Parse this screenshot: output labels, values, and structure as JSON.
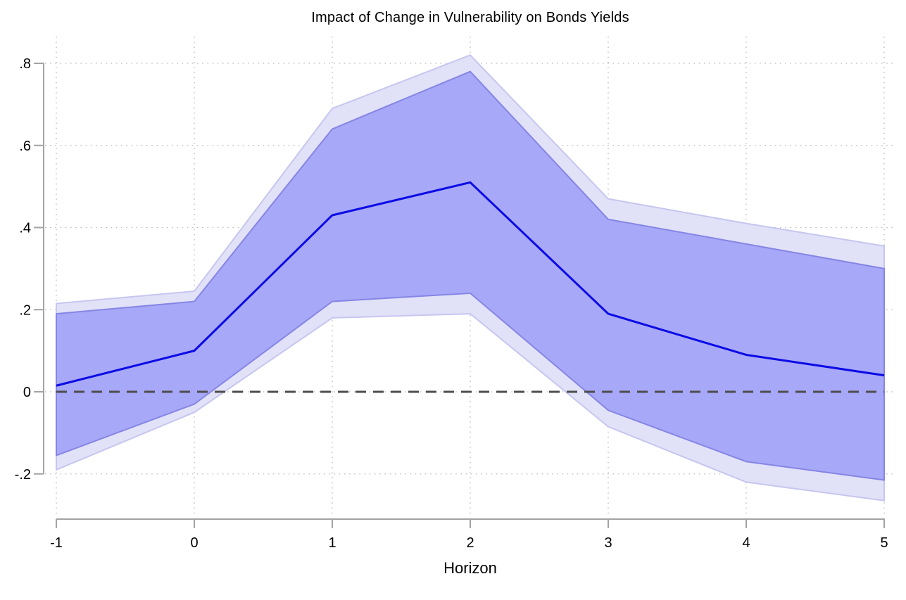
{
  "chart_data": {
    "type": "area",
    "title": "Impact of Change in Vulnerability on Bonds Yields",
    "xlabel": "Horizon",
    "ylabel": "",
    "x": [
      -1,
      0,
      1,
      2,
      3,
      4,
      5
    ],
    "series": [
      {
        "name": "point-estimate",
        "kind": "line",
        "values": [
          0.015,
          0.1,
          0.43,
          0.51,
          0.19,
          0.09,
          0.04
        ]
      },
      {
        "name": "inner-confidence-band-upper",
        "kind": "band-edge",
        "values": [
          0.19,
          0.22,
          0.64,
          0.78,
          0.42,
          0.36,
          0.3
        ]
      },
      {
        "name": "inner-confidence-band-lower",
        "kind": "band-edge",
        "values": [
          -0.155,
          -0.03,
          0.22,
          0.24,
          -0.045,
          -0.17,
          -0.215
        ]
      },
      {
        "name": "outer-confidence-band-upper",
        "kind": "band-edge",
        "values": [
          0.215,
          0.245,
          0.69,
          0.82,
          0.47,
          0.41,
          0.355
        ]
      },
      {
        "name": "outer-confidence-band-lower",
        "kind": "band-edge",
        "values": [
          -0.19,
          -0.05,
          0.18,
          0.19,
          -0.085,
          -0.22,
          -0.265
        ]
      }
    ],
    "zero_reference_line": 0,
    "x_ticks": [
      {
        "label": "-1",
        "value": -1
      },
      {
        "label": "0",
        "value": 0
      },
      {
        "label": "1",
        "value": 1
      },
      {
        "label": "2",
        "value": 2
      },
      {
        "label": "3",
        "value": 3
      },
      {
        "label": "4",
        "value": 4
      },
      {
        "label": "5",
        "value": 5
      }
    ],
    "y_ticks": [
      {
        "label": ".8",
        "value": 0.8
      },
      {
        "label": ".6",
        "value": 0.6
      },
      {
        "label": ".4",
        "value": 0.4
      },
      {
        "label": ".2",
        "value": 0.2
      },
      {
        "label": "0",
        "value": 0
      },
      {
        "label": "-.2",
        "value": -0.2
      }
    ],
    "xlim": [
      -1,
      5
    ],
    "ylim": [
      -0.305,
      0.865
    ],
    "grid": "dotted",
    "legend": "none",
    "colors": {
      "line": "#0b0be6",
      "inner_band_fill": "#a8a8f8",
      "inner_band_edge": "#8585e5",
      "outer_band_fill": "#e1e1f8",
      "outer_band_edge": "#c6c6ef",
      "grid": "#b9b9b9",
      "axis": "#a3a3a3",
      "zero_line": "#4d4d4d",
      "text": "#000000",
      "background": "#ffffff"
    }
  }
}
